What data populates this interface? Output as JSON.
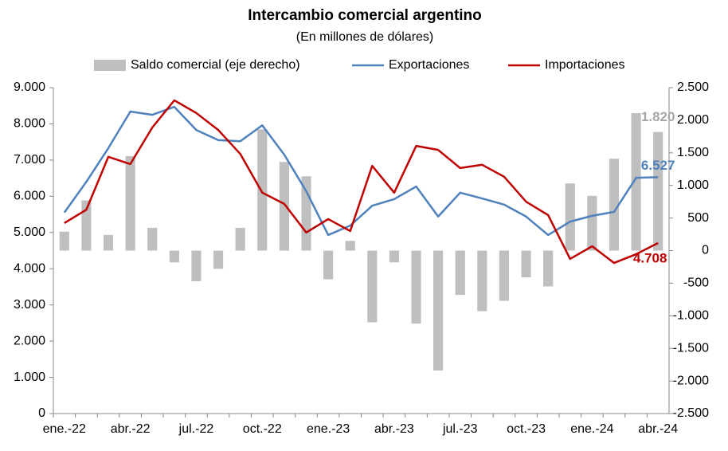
{
  "chart_data": {
    "type": "bar_line",
    "title": "Intercambio comercial argentino",
    "subtitle": "(En millones de dólares)",
    "categories": [
      "ene.-22",
      null,
      null,
      "abr.-22",
      null,
      null,
      "jul.-22",
      null,
      null,
      "oct.-22",
      null,
      null,
      "ene.-23",
      null,
      null,
      "abr.-23",
      null,
      null,
      "jul.-23",
      null,
      null,
      "oct.-23",
      null,
      null,
      "ene.-24",
      null,
      null,
      "abr.-24"
    ],
    "series": [
      {
        "name": "Saldo comercial (eje derecho)",
        "kind": "bar",
        "axis": "y2",
        "color": "#bfbfbf",
        "values": [
          290,
          770,
          240,
          1450,
          350,
          -180,
          -470,
          -280,
          350,
          1860,
          1360,
          1140,
          -440,
          150,
          -1100,
          -180,
          -1120,
          -1840,
          -680,
          -930,
          -770,
          -410,
          -550,
          1030,
          840,
          1410,
          2110,
          1820
        ],
        "value_labels": [
          null,
          null,
          null,
          null,
          null,
          null,
          null,
          null,
          null,
          null,
          null,
          null,
          null,
          null,
          null,
          null,
          null,
          null,
          null,
          null,
          null,
          null,
          null,
          null,
          null,
          null,
          null,
          "1.820"
        ]
      },
      {
        "name": "Exportaciones",
        "kind": "line",
        "color": "#4f81bd",
        "values": [
          5550,
          6400,
          7330,
          8340,
          8250,
          8470,
          7830,
          7550,
          7520,
          7960,
          7150,
          6140,
          4930,
          5190,
          5740,
          5920,
          6270,
          5440,
          6100,
          5940,
          5770,
          5440,
          4930,
          5300,
          5460,
          5570,
          6510,
          6527
        ],
        "value_labels": [
          null,
          null,
          null,
          null,
          null,
          null,
          null,
          null,
          null,
          null,
          null,
          null,
          null,
          null,
          null,
          null,
          null,
          null,
          null,
          null,
          null,
          null,
          null,
          null,
          null,
          null,
          null,
          "6.527"
        ]
      },
      {
        "name": "Importaciones",
        "kind": "line",
        "color": "#c00000",
        "values": [
          5260,
          5630,
          7090,
          6890,
          7900,
          8650,
          8300,
          7830,
          7170,
          6100,
          5790,
          5000,
          5370,
          5040,
          6840,
          6100,
          7390,
          7280,
          6780,
          6870,
          6540,
          5850,
          5480,
          4270,
          4620,
          4160,
          4400,
          4708
        ],
        "value_labels": [
          null,
          null,
          null,
          null,
          null,
          null,
          null,
          null,
          null,
          null,
          null,
          null,
          null,
          null,
          null,
          null,
          null,
          null,
          null,
          null,
          null,
          null,
          null,
          null,
          null,
          null,
          null,
          "4.708"
        ]
      }
    ],
    "ylim": [
      0,
      9000
    ],
    "yticks": [
      0,
      {
        "value": 1000,
        "label": "1.000"
      },
      {
        "value": 2000,
        "label": "2.000"
      },
      {
        "value": 3000,
        "label": "3.000"
      },
      {
        "value": 4000,
        "label": "4.000"
      },
      {
        "value": 5000,
        "label": "5.000"
      },
      {
        "value": 6000,
        "label": "6.000"
      },
      {
        "value": 7000,
        "label": "7.000"
      },
      {
        "value": 8000,
        "label": "8.000"
      },
      {
        "value": 9000,
        "label": "9.000"
      }
    ],
    "y2lim": [
      -2500,
      2500
    ],
    "y2ticks": [
      {
        "value": -2500,
        "label": "-2.500"
      },
      {
        "value": -2000,
        "label": "-2.000"
      },
      {
        "value": -1500,
        "label": "-1.500"
      },
      {
        "value": -1000,
        "label": "-1.000"
      },
      -500,
      0,
      500,
      {
        "value": 1000,
        "label": "1.000"
      },
      {
        "value": 1500,
        "label": "1.500"
      },
      {
        "value": 2000,
        "label": "2.000"
      },
      {
        "value": 2500,
        "label": "2.500"
      }
    ],
    "legend": "top"
  }
}
